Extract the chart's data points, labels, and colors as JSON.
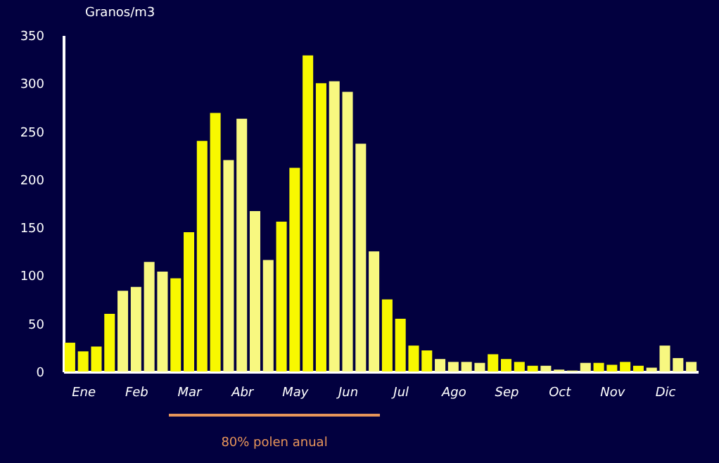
{
  "chart_data": {
    "type": "bar",
    "ylabel": "Granos/m3",
    "categories": [
      null,
      "Ene",
      null,
      null,
      null,
      "Feb",
      null,
      null,
      null,
      "Mar",
      null,
      null,
      null,
      "Abr",
      null,
      null,
      null,
      "May",
      null,
      null,
      null,
      "Jun",
      null,
      null,
      null,
      "Jul",
      null,
      null,
      null,
      "Ago",
      null,
      null,
      null,
      "Sep",
      null,
      null,
      null,
      "Oct",
      null,
      null,
      null,
      "Nov",
      null,
      null,
      null,
      "Dic",
      null,
      null
    ],
    "values": [
      30,
      21,
      26,
      60,
      84,
      88,
      114,
      104,
      97,
      145,
      240,
      269,
      220,
      263,
      167,
      116,
      156,
      212,
      329,
      300,
      302,
      291,
      237,
      125,
      75,
      55,
      27,
      22,
      13,
      10,
      10,
      9,
      18,
      13,
      10,
      6,
      6,
      2,
      1,
      9,
      9,
      7,
      10,
      6,
      4,
      27,
      14,
      10
    ],
    "colors": [
      "#f8f800",
      "#f8f800",
      "#f8f800",
      "#f8f800",
      "#f8f880",
      "#f8f880",
      "#f8f880",
      "#f8f880",
      "#f8f800",
      "#f8f800",
      "#f8f800",
      "#f8f800",
      "#f8f880",
      "#f8f880",
      "#f8f880",
      "#f8f880",
      "#f8f800",
      "#f8f800",
      "#f8f800",
      "#f8f800",
      "#f8f880",
      "#f8f880",
      "#f8f880",
      "#f8f880",
      "#f8f800",
      "#f8f800",
      "#f8f800",
      "#f8f800",
      "#f8f880",
      "#f8f880",
      "#f8f880",
      "#f8f880",
      "#f8f800",
      "#f8f800",
      "#f8f800",
      "#f8f800",
      "#f8f880",
      "#f8f880",
      "#f8f880",
      "#f8f880",
      "#f8f800",
      "#f8f800",
      "#f8f800",
      "#f8f800",
      "#f8f880",
      "#f8f880",
      "#f8f880",
      "#f8f880"
    ],
    "ylim": [
      0,
      350
    ],
    "yticks": [
      0,
      50,
      100,
      150,
      200,
      250,
      300,
      350
    ],
    "grid": false,
    "annotations": [
      "80% polen anual"
    ]
  }
}
